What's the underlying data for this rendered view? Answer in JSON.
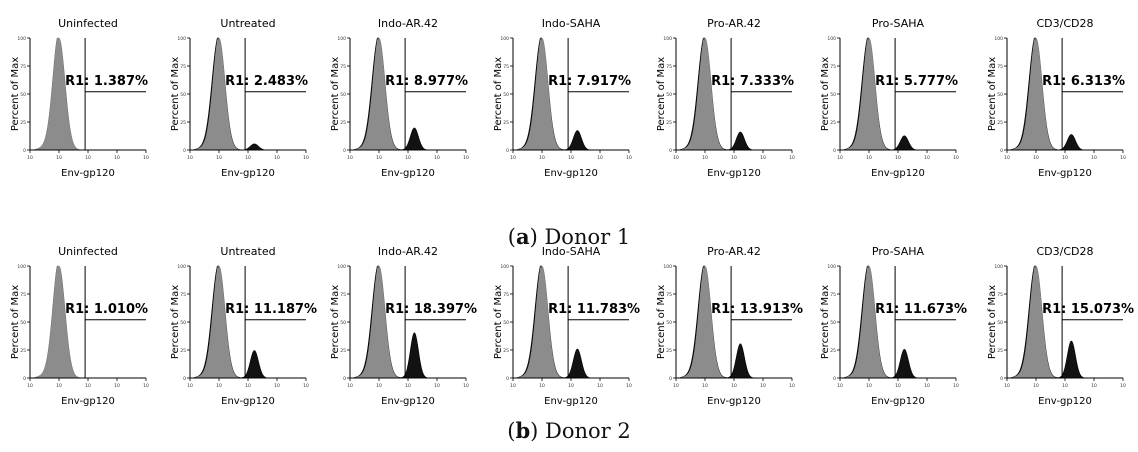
{
  "colors": {
    "sample": "#000000",
    "control": "#8c8c8c",
    "axis": "#000000",
    "tick": "#333333"
  },
  "panels": [
    {
      "caption": {
        "letter": "a",
        "text": "Donor 1"
      },
      "chart_data": [
        {
          "type": "histogram",
          "title": "Uninfected",
          "xlabel": "Env-gp120",
          "ylabel": "Percent of Max",
          "gate_label": "R1:",
          "gate_value": "1.387%",
          "yticks": [
            "0",
            "25",
            "50",
            "75",
            "100"
          ],
          "xticks": [
            "10",
            "10",
            "10",
            "10",
            "10"
          ],
          "xscale": "log",
          "overlay": false,
          "r1_percent": 1.387,
          "gate_start_decade": 1.9,
          "peak_decade": 1.0
        },
        {
          "type": "histogram",
          "title": "Untreated",
          "xlabel": "Env-gp120",
          "ylabel": "Percent of Max",
          "gate_label": "R1:",
          "gate_value": "2.483%",
          "yticks": [
            "0",
            "25",
            "50",
            "75",
            "100"
          ],
          "xticks": [
            "10",
            "10",
            "10",
            "10",
            "10"
          ],
          "xscale": "log",
          "overlay": true,
          "r1_percent": 2.483,
          "gate_start_decade": 1.9,
          "peak_decade": 1.0
        },
        {
          "type": "histogram",
          "title": "Indo-AR.42",
          "xlabel": "Env-gp120",
          "ylabel": "Percent of Max",
          "gate_label": "R1:",
          "gate_value": "8.977%",
          "yticks": [
            "0",
            "25",
            "50",
            "75",
            "100"
          ],
          "xticks": [
            "10",
            "10",
            "10",
            "10",
            "10"
          ],
          "xscale": "log",
          "overlay": true,
          "r1_percent": 8.977,
          "gate_start_decade": 1.9,
          "peak_decade": 1.0
        },
        {
          "type": "histogram",
          "title": "Indo-SAHA",
          "xlabel": "Env-gp120",
          "ylabel": "Percent of Max",
          "gate_label": "R1:",
          "gate_value": "7.917%",
          "yticks": [
            "0",
            "25",
            "50",
            "75",
            "100"
          ],
          "xticks": [
            "10",
            "10",
            "10",
            "10",
            "10"
          ],
          "xscale": "log",
          "overlay": true,
          "r1_percent": 7.917,
          "gate_start_decade": 1.9,
          "peak_decade": 1.0
        },
        {
          "type": "histogram",
          "title": "Pro-AR.42",
          "xlabel": "Env-gp120",
          "ylabel": "Percent of Max",
          "gate_label": "R1:",
          "gate_value": "7.333%",
          "yticks": [
            "0",
            "25",
            "50",
            "75",
            "100"
          ],
          "xticks": [
            "10",
            "10",
            "10",
            "10",
            "10"
          ],
          "xscale": "log",
          "overlay": true,
          "r1_percent": 7.333,
          "gate_start_decade": 1.9,
          "peak_decade": 1.0
        },
        {
          "type": "histogram",
          "title": "Pro-SAHA",
          "xlabel": "Env-gp120",
          "ylabel": "Percent of Max",
          "gate_label": "R1:",
          "gate_value": "5.777%",
          "yticks": [
            "0",
            "25",
            "50",
            "75",
            "100"
          ],
          "xticks": [
            "10",
            "10",
            "10",
            "10",
            "10"
          ],
          "xscale": "log",
          "overlay": true,
          "r1_percent": 5.777,
          "gate_start_decade": 1.9,
          "peak_decade": 1.0
        },
        {
          "type": "histogram",
          "title": "CD3/CD28",
          "xlabel": "Env-gp120",
          "ylabel": "Percent of Max",
          "gate_label": "R1:",
          "gate_value": "6.313%",
          "yticks": [
            "0",
            "25",
            "50",
            "75",
            "100"
          ],
          "xticks": [
            "10",
            "10",
            "10",
            "10",
            "10"
          ],
          "xscale": "log",
          "overlay": true,
          "r1_percent": 6.313,
          "gate_start_decade": 1.9,
          "peak_decade": 1.0
        }
      ]
    },
    {
      "caption": {
        "letter": "b",
        "text": "Donor 2"
      },
      "chart_data": [
        {
          "type": "histogram",
          "title": "Uninfected",
          "xlabel": "Env-gp120",
          "ylabel": "Percent of Max",
          "gate_label": "R1:",
          "gate_value": "1.010%",
          "yticks": [
            "0",
            "25",
            "50",
            "75",
            "100"
          ],
          "xticks": [
            "10",
            "10",
            "10",
            "10",
            "10"
          ],
          "xscale": "log",
          "overlay": false,
          "r1_percent": 1.01,
          "gate_start_decade": 1.9,
          "peak_decade": 1.0
        },
        {
          "type": "histogram",
          "title": "Untreated",
          "xlabel": "Env-gp120",
          "ylabel": "Percent of Max",
          "gate_label": "R1:",
          "gate_value": "11.187%",
          "yticks": [
            "0",
            "25",
            "50",
            "75",
            "100"
          ],
          "xticks": [
            "10",
            "10",
            "10",
            "10",
            "10"
          ],
          "xscale": "log",
          "overlay": true,
          "r1_percent": 11.187,
          "gate_start_decade": 1.9,
          "peak_decade": 1.0
        },
        {
          "type": "histogram",
          "title": "Indo-AR.42",
          "xlabel": "Env-gp120",
          "ylabel": "Percent of Max",
          "gate_label": "R1:",
          "gate_value": "18.397%",
          "yticks": [
            "0",
            "25",
            "50",
            "75",
            "100"
          ],
          "xticks": [
            "10",
            "10",
            "10",
            "10",
            "10"
          ],
          "xscale": "log",
          "overlay": true,
          "r1_percent": 18.397,
          "gate_start_decade": 1.9,
          "peak_decade": 1.0
        },
        {
          "type": "histogram",
          "title": "Indo-SAHA",
          "xlabel": "Env-gp120",
          "ylabel": "Percent of Max",
          "gate_label": "R1:",
          "gate_value": "11.783%",
          "yticks": [
            "0",
            "25",
            "50",
            "75",
            "100"
          ],
          "xticks": [
            "10",
            "10",
            "10",
            "10",
            "10"
          ],
          "xscale": "log",
          "overlay": true,
          "r1_percent": 11.783,
          "gate_start_decade": 1.9,
          "peak_decade": 1.0
        },
        {
          "type": "histogram",
          "title": "Pro-AR.42",
          "xlabel": "Env-gp120",
          "ylabel": "Percent of Max",
          "gate_label": "R1:",
          "gate_value": "13.913%",
          "yticks": [
            "0",
            "25",
            "50",
            "75",
            "100"
          ],
          "xticks": [
            "10",
            "10",
            "10",
            "10",
            "10"
          ],
          "xscale": "log",
          "overlay": true,
          "r1_percent": 13.913,
          "gate_start_decade": 1.9,
          "peak_decade": 1.0
        },
        {
          "type": "histogram",
          "title": "Pro-SAHA",
          "xlabel": "Env-gp120",
          "ylabel": "Percent of Max",
          "gate_label": "R1:",
          "gate_value": "11.673%",
          "yticks": [
            "0",
            "25",
            "50",
            "75",
            "100"
          ],
          "xticks": [
            "10",
            "10",
            "10",
            "10",
            "10"
          ],
          "xscale": "log",
          "overlay": true,
          "r1_percent": 11.673,
          "gate_start_decade": 1.9,
          "peak_decade": 1.0
        },
        {
          "type": "histogram",
          "title": "CD3/CD28",
          "xlabel": "Env-gp120",
          "ylabel": "Percent of Max",
          "gate_label": "R1:",
          "gate_value": "15.073%",
          "yticks": [
            "0",
            "25",
            "50",
            "75",
            "100"
          ],
          "xticks": [
            "10",
            "10",
            "10",
            "10",
            "10"
          ],
          "xscale": "log",
          "overlay": true,
          "r1_percent": 15.073,
          "gate_start_decade": 1.9,
          "peak_decade": 1.0
        }
      ]
    }
  ]
}
